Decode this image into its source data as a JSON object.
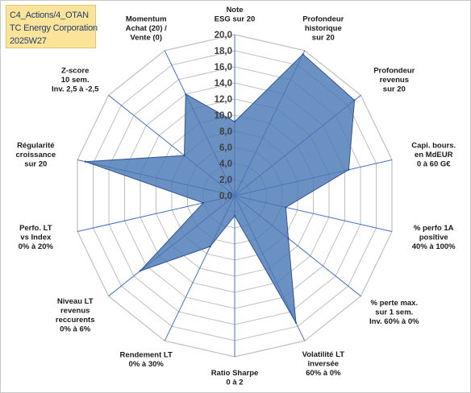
{
  "title_box": {
    "lines": [
      "C4_Actions/4_OTAN",
      "TC Energy Corporation",
      "2025W27"
    ]
  },
  "colors": {
    "title_bg": "#fbe39a",
    "title_text": "#1f3e6e",
    "series_fill": "#4a78b4",
    "series_stroke": "#2f5597",
    "grid": "#bfbfbf",
    "spokes": "#4472c4"
  },
  "chart_data": {
    "type": "radar",
    "r_range": [
      0,
      20
    ],
    "r_ticks": [
      "0,0",
      "2,0",
      "4,0",
      "6,0",
      "8,0",
      "10,0",
      "12,0",
      "14,0",
      "16,0",
      "18,0",
      "20,0"
    ],
    "axes": [
      [
        "Note",
        "ESG sur 20"
      ],
      [
        "Profondeur",
        "historique",
        "sur 20"
      ],
      [
        "Profondeur",
        "revenus",
        "sur 20"
      ],
      [
        "Capi. bours.",
        "en MdEUR",
        "0 à 60 G€"
      ],
      [
        "% perfo 1A",
        "positive",
        "40% à 100%"
      ],
      [
        "% perte max.",
        "sur 1 sem.",
        "Inv. 60% à 0%"
      ],
      [
        "Volatilité LT",
        "inversée",
        "60% à 0%"
      ],
      [
        "Ratio Sharpe",
        "0 à 2"
      ],
      [
        "Rendement LT",
        "0% à 30%"
      ],
      [
        "Niveau LT",
        "revenus",
        "reccurents",
        "0% à 6%"
      ],
      [
        "Perfo. LT",
        "vs Index",
        "0% à 20%"
      ],
      [
        "Régularité",
        "croissance",
        "sur 20"
      ],
      [
        "Z-score",
        "10 sem.",
        "Inv. 2,5 à -2,5"
      ],
      [
        "Momentum",
        "Achat (20) /",
        "Vente (0)"
      ]
    ],
    "series": [
      {
        "values": [
          9.2,
          19.5,
          19.0,
          14.5,
          6.5,
          8.5,
          17.5,
          2.5,
          7.0,
          15.0,
          4.0,
          19.0,
          8.0,
          14.0
        ]
      }
    ],
    "grid": true
  }
}
